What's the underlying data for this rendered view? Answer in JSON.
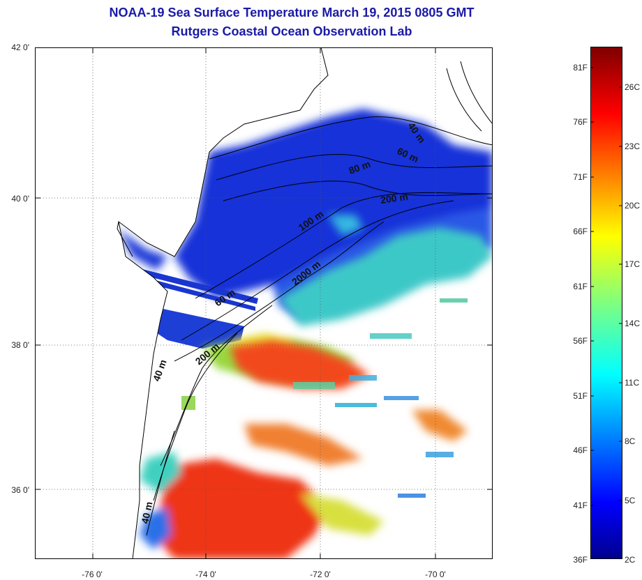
{
  "title": "NOAA-19 Sea Surface Temperature March 19, 2015 0805 GMT",
  "subtitle": "Rutgers Coastal Ocean Observation Lab",
  "lat_labels": [
    "42 0'",
    "40 0'",
    "38 0'",
    "36 0'"
  ],
  "lon_labels": [
    "-76 0'",
    "-74 0'",
    "-72 0'",
    "-70 0'"
  ],
  "colorbar": {
    "fahrenheit": [
      "81F",
      "76F",
      "71F",
      "66F",
      "61F",
      "56F",
      "51F",
      "46F",
      "41F",
      "36F"
    ],
    "celsius": [
      "26C",
      "23C",
      "20C",
      "17C",
      "14C",
      "11C",
      "8C",
      "5C",
      "2C"
    ],
    "range_c": [
      2,
      28
    ]
  },
  "contour_labels": [
    "40 m",
    "60 m",
    "80 m",
    "200 m",
    "100 m",
    "2000 m",
    "60 m",
    "200 m",
    "40 m",
    "40 m"
  ],
  "colors": {
    "title": "#1a1aa8",
    "land_outline": "#000000",
    "grid": "#555555"
  }
}
